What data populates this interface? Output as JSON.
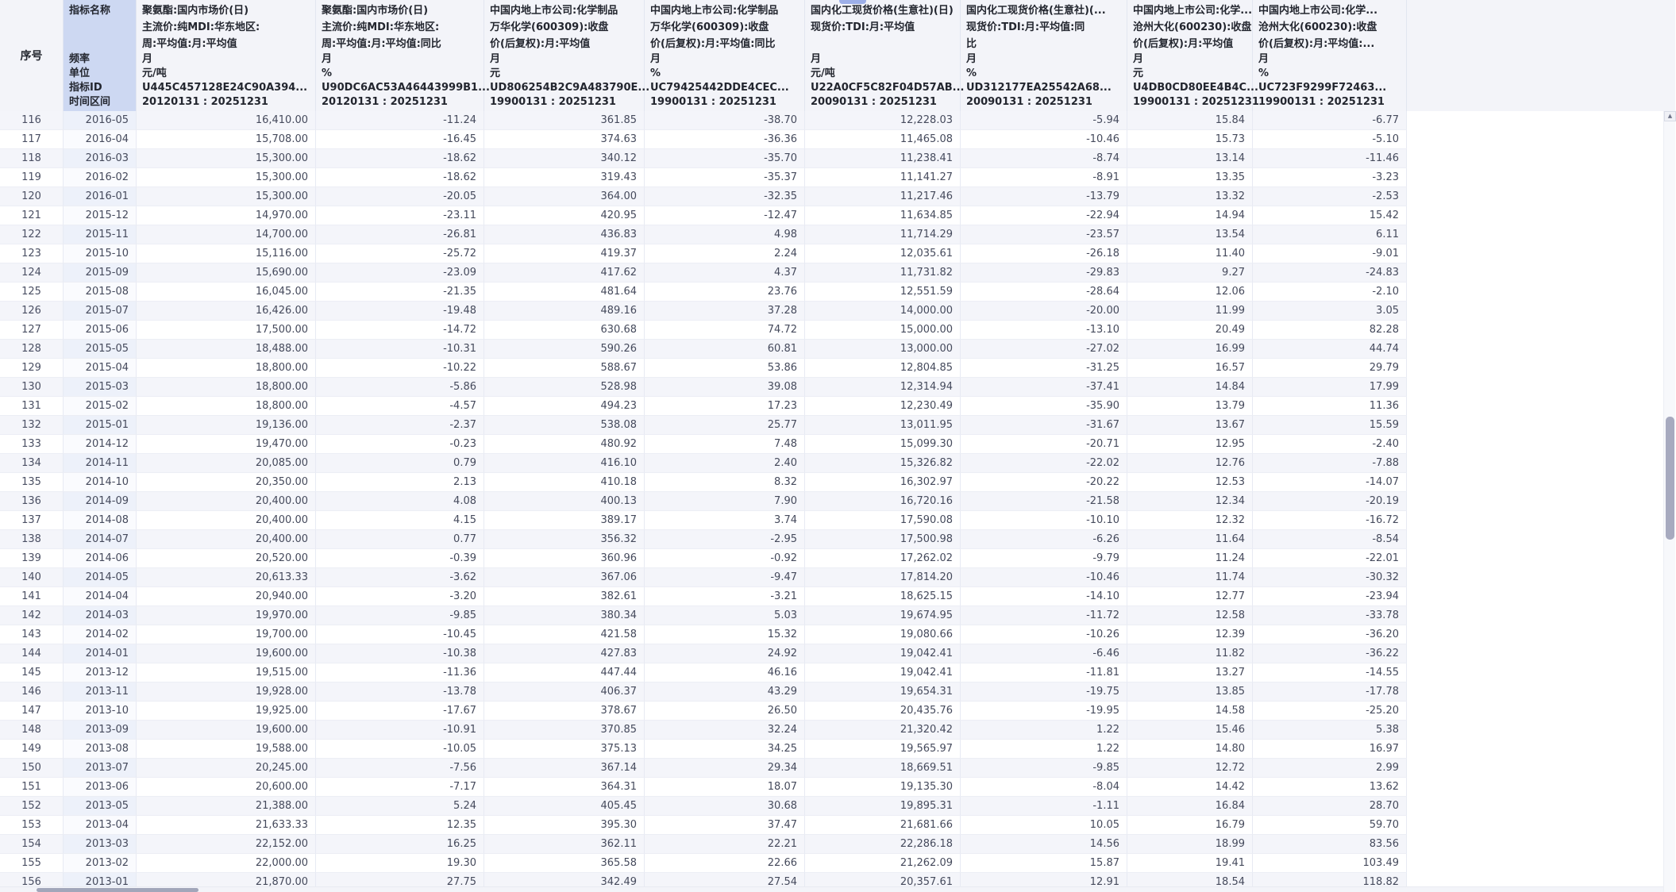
{
  "icons": {
    "scroll_up_arrow": "▲"
  },
  "table": {
    "corner_label": "序号",
    "row_labels": [
      "指标名称",
      "频率",
      "单位",
      "指标ID",
      "时间区间"
    ],
    "columns": [
      {
        "name_lines": [
          "聚氨酯:国内市场价(日)",
          "主流价:纯MDI:华东地区:",
          "周:平均值:月:平均值"
        ],
        "freq": "月",
        "unit": "元/吨",
        "id": "U445C457128E24C90A394...",
        "range": "20120131 : 20251231"
      },
      {
        "name_lines": [
          "聚氨酯:国内市场价(日)",
          "主流价:纯MDI:华东地区:",
          "周:平均值:月:平均值:同比"
        ],
        "freq": "月",
        "unit": "%",
        "id": "U90DC6AC53A46443999B1...",
        "range": "20120131 : 20251231"
      },
      {
        "name_lines": [
          "中国内地上市公司:化学制品",
          "万华化学(600309):收盘",
          "价(后复权):月:平均值"
        ],
        "freq": "月",
        "unit": "元",
        "id": "UD806254B2C9A483790E...",
        "range": "19900131 : 20251231"
      },
      {
        "name_lines": [
          "中国内地上市公司:化学制品",
          "万华化学(600309):收盘",
          "价(后复权):月:平均值:同比"
        ],
        "freq": "月",
        "unit": "%",
        "id": "UC79425442DDE4CEC...",
        "range": "19900131 : 20251231"
      },
      {
        "name_lines": [
          "国内化工现货价格(生意社)(日)",
          "现货价:TDI:月:平均值"
        ],
        "freq": "月",
        "unit": "元/吨",
        "id": "U22A0CF5C82F04D57AB...",
        "range": "20090131 : 20251231"
      },
      {
        "name_lines": [
          "国内化工现货价格(生意社)(...",
          "现货价:TDI:月:平均值:同",
          "比"
        ],
        "freq": "月",
        "unit": "%",
        "id": "UD312177EA25542A68...",
        "range": "20090131 : 20251231"
      },
      {
        "name_lines": [
          "中国内地上市公司:化学...",
          "沧州大化(600230):收盘",
          "价(后复权):月:平均值"
        ],
        "freq": "月",
        "unit": "元",
        "id": "U4DB0CD80EE4B4C...",
        "range": "19900131 : 20251231"
      },
      {
        "name_lines": [
          "中国内地上市公司:化学...",
          "沧州大化(600230):收盘",
          "价(后复权):月:平均值:..."
        ],
        "freq": "月",
        "unit": "%",
        "id": "UC723F9299F72463...",
        "range": "19900131 : 20251231"
      }
    ],
    "rows": [
      [
        "116",
        "2016-05",
        "16,410.00",
        "-11.24",
        "361.85",
        "-38.70",
        "12,228.03",
        "-5.94",
        "15.84",
        "-6.77"
      ],
      [
        "117",
        "2016-04",
        "15,708.00",
        "-16.45",
        "374.63",
        "-36.36",
        "11,465.08",
        "-10.46",
        "15.73",
        "-5.10"
      ],
      [
        "118",
        "2016-03",
        "15,300.00",
        "-18.62",
        "340.12",
        "-35.70",
        "11,238.41",
        "-8.74",
        "13.14",
        "-11.46"
      ],
      [
        "119",
        "2016-02",
        "15,300.00",
        "-18.62",
        "319.43",
        "-35.37",
        "11,141.27",
        "-8.91",
        "13.35",
        "-3.23"
      ],
      [
        "120",
        "2016-01",
        "15,300.00",
        "-20.05",
        "364.00",
        "-32.35",
        "11,217.46",
        "-13.79",
        "13.32",
        "-2.53"
      ],
      [
        "121",
        "2015-12",
        "14,970.00",
        "-23.11",
        "420.95",
        "-12.47",
        "11,634.85",
        "-22.94",
        "14.94",
        "15.42"
      ],
      [
        "122",
        "2015-11",
        "14,700.00",
        "-26.81",
        "436.83",
        "4.98",
        "11,714.29",
        "-23.57",
        "13.54",
        "6.11"
      ],
      [
        "123",
        "2015-10",
        "15,116.00",
        "-25.72",
        "419.37",
        "2.24",
        "12,035.61",
        "-26.18",
        "11.40",
        "-9.01"
      ],
      [
        "124",
        "2015-09",
        "15,690.00",
        "-23.09",
        "417.62",
        "4.37",
        "11,731.82",
        "-29.83",
        "9.27",
        "-24.83"
      ],
      [
        "125",
        "2015-08",
        "16,045.00",
        "-21.35",
        "481.64",
        "23.76",
        "12,551.59",
        "-28.64",
        "12.06",
        "-2.10"
      ],
      [
        "126",
        "2015-07",
        "16,426.00",
        "-19.48",
        "489.16",
        "37.28",
        "14,000.00",
        "-20.00",
        "11.99",
        "3.05"
      ],
      [
        "127",
        "2015-06",
        "17,500.00",
        "-14.72",
        "630.68",
        "74.72",
        "15,000.00",
        "-13.10",
        "20.49",
        "82.28"
      ],
      [
        "128",
        "2015-05",
        "18,488.00",
        "-10.31",
        "590.26",
        "60.81",
        "13,000.00",
        "-27.02",
        "16.99",
        "44.74"
      ],
      [
        "129",
        "2015-04",
        "18,800.00",
        "-10.22",
        "588.67",
        "53.86",
        "12,804.85",
        "-31.25",
        "16.57",
        "29.79"
      ],
      [
        "130",
        "2015-03",
        "18,800.00",
        "-5.86",
        "528.98",
        "39.08",
        "12,314.94",
        "-37.41",
        "14.84",
        "17.99"
      ],
      [
        "131",
        "2015-02",
        "18,800.00",
        "-4.57",
        "494.23",
        "17.23",
        "12,230.49",
        "-35.90",
        "13.79",
        "11.36"
      ],
      [
        "132",
        "2015-01",
        "19,136.00",
        "-2.37",
        "538.08",
        "25.77",
        "13,011.95",
        "-31.67",
        "13.67",
        "15.59"
      ],
      [
        "133",
        "2014-12",
        "19,470.00",
        "-0.23",
        "480.92",
        "7.48",
        "15,099.30",
        "-20.71",
        "12.95",
        "-2.40"
      ],
      [
        "134",
        "2014-11",
        "20,085.00",
        "0.79",
        "416.10",
        "2.40",
        "15,326.82",
        "-22.02",
        "12.76",
        "-7.88"
      ],
      [
        "135",
        "2014-10",
        "20,350.00",
        "2.13",
        "410.18",
        "8.32",
        "16,302.97",
        "-20.22",
        "12.53",
        "-14.07"
      ],
      [
        "136",
        "2014-09",
        "20,400.00",
        "4.08",
        "400.13",
        "7.90",
        "16,720.16",
        "-21.58",
        "12.34",
        "-20.19"
      ],
      [
        "137",
        "2014-08",
        "20,400.00",
        "4.15",
        "389.17",
        "3.74",
        "17,590.08",
        "-10.10",
        "12.32",
        "-16.72"
      ],
      [
        "138",
        "2014-07",
        "20,400.00",
        "0.77",
        "356.32",
        "-2.95",
        "17,500.98",
        "-6.26",
        "11.64",
        "-8.54"
      ],
      [
        "139",
        "2014-06",
        "20,520.00",
        "-0.39",
        "360.96",
        "-0.92",
        "17,262.02",
        "-9.79",
        "11.24",
        "-22.01"
      ],
      [
        "140",
        "2014-05",
        "20,613.33",
        "-3.62",
        "367.06",
        "-9.47",
        "17,814.20",
        "-10.46",
        "11.74",
        "-30.32"
      ],
      [
        "141",
        "2014-04",
        "20,940.00",
        "-3.20",
        "382.61",
        "-3.21",
        "18,625.15",
        "-14.10",
        "12.77",
        "-23.94"
      ],
      [
        "142",
        "2014-03",
        "19,970.00",
        "-9.85",
        "380.34",
        "5.03",
        "19,674.95",
        "-11.72",
        "12.58",
        "-33.78"
      ],
      [
        "143",
        "2014-02",
        "19,700.00",
        "-10.45",
        "421.58",
        "15.32",
        "19,080.66",
        "-10.26",
        "12.39",
        "-36.20"
      ],
      [
        "144",
        "2014-01",
        "19,600.00",
        "-10.38",
        "427.83",
        "24.92",
        "19,042.41",
        "-6.46",
        "11.82",
        "-36.22"
      ],
      [
        "145",
        "2013-12",
        "19,515.00",
        "-11.36",
        "447.44",
        "46.16",
        "19,042.41",
        "-11.81",
        "13.27",
        "-14.55"
      ],
      [
        "146",
        "2013-11",
        "19,928.00",
        "-13.78",
        "406.37",
        "43.29",
        "19,654.31",
        "-19.75",
        "13.85",
        "-17.78"
      ],
      [
        "147",
        "2013-10",
        "19,925.00",
        "-17.67",
        "378.67",
        "26.50",
        "20,435.76",
        "-19.95",
        "14.58",
        "-25.20"
      ],
      [
        "148",
        "2013-09",
        "19,600.00",
        "-10.91",
        "370.85",
        "32.24",
        "21,320.42",
        "1.22",
        "15.46",
        "5.38"
      ],
      [
        "149",
        "2013-08",
        "19,588.00",
        "-10.05",
        "375.13",
        "34.25",
        "19,565.97",
        "1.22",
        "14.80",
        "16.97"
      ],
      [
        "150",
        "2013-07",
        "20,245.00",
        "-7.56",
        "367.14",
        "29.34",
        "18,669.51",
        "-9.85",
        "12.72",
        "2.99"
      ],
      [
        "151",
        "2013-06",
        "20,600.00",
        "-7.17",
        "364.31",
        "18.07",
        "19,135.30",
        "-8.04",
        "14.42",
        "13.62"
      ],
      [
        "152",
        "2013-05",
        "21,388.00",
        "5.24",
        "405.45",
        "30.68",
        "19,895.31",
        "-1.11",
        "16.84",
        "28.70"
      ],
      [
        "153",
        "2013-04",
        "21,633.33",
        "12.35",
        "395.30",
        "37.47",
        "21,681.66",
        "10.05",
        "16.79",
        "59.70"
      ],
      [
        "154",
        "2013-03",
        "22,152.00",
        "16.25",
        "362.11",
        "22.21",
        "22,286.18",
        "14.56",
        "18.99",
        "83.56"
      ],
      [
        "155",
        "2013-02",
        "22,000.00",
        "19.30",
        "365.58",
        "22.66",
        "21,262.09",
        "15.87",
        "19.41",
        "103.49"
      ],
      [
        "156",
        "2013-01",
        "21,870.00",
        "27.75",
        "342.49",
        "27.54",
        "20,357.61",
        "12.91",
        "18.54",
        "118.82"
      ]
    ]
  }
}
